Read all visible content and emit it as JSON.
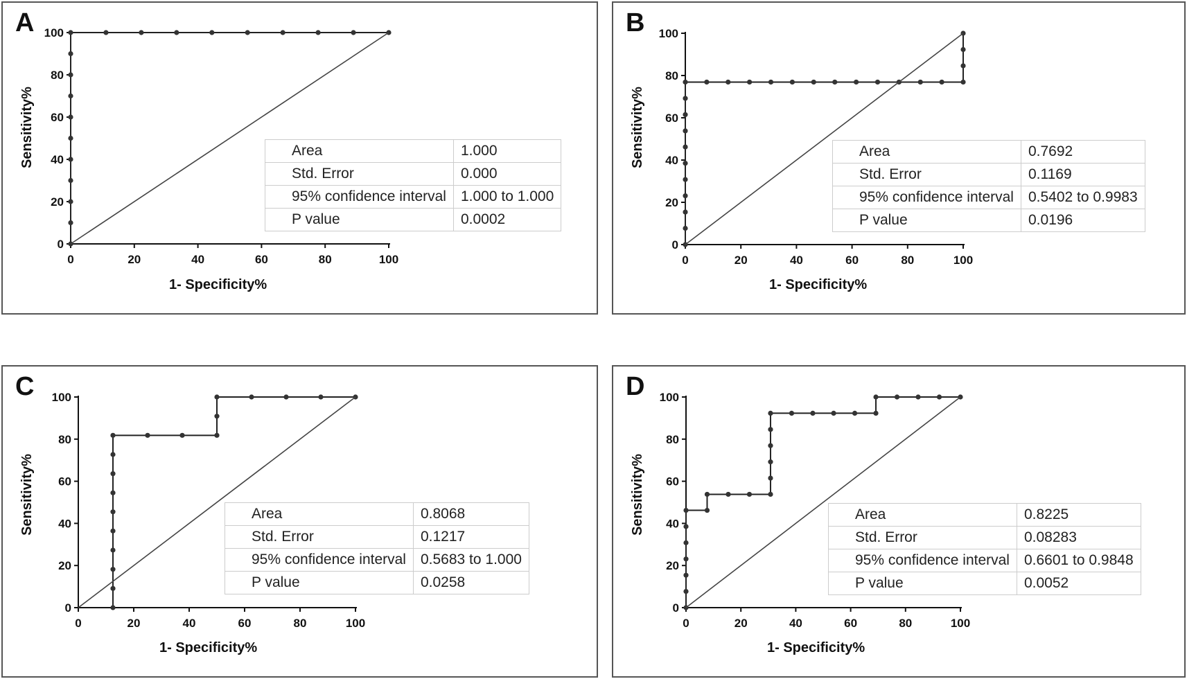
{
  "chart_data": [
    {
      "type": "line",
      "panel_label": "A",
      "xlabel": "1- Specificity%",
      "ylabel": "Sensitivity%",
      "xlim": [
        0,
        100
      ],
      "ylim": [
        0,
        100
      ],
      "xticks": [
        0,
        20,
        40,
        60,
        80,
        100
      ],
      "yticks": [
        0,
        20,
        40,
        60,
        80,
        100
      ],
      "series": [
        {
          "name": "ROC curve",
          "x": [
            0,
            0,
            0,
            0,
            0,
            0,
            0,
            0,
            0,
            0,
            0,
            11.1,
            22.2,
            33.3,
            44.4,
            55.6,
            66.7,
            77.8,
            88.9,
            100
          ],
          "y": [
            0,
            10,
            20,
            30,
            40,
            50,
            60,
            70,
            80,
            90,
            100,
            100,
            100,
            100,
            100,
            100,
            100,
            100,
            100,
            100
          ]
        },
        {
          "name": "Reference line",
          "x": [
            0,
            100
          ],
          "y": [
            0,
            100
          ]
        }
      ],
      "stats": [
        {
          "label": "Area",
          "value": "1.000"
        },
        {
          "label": "Std. Error",
          "value": "0.000"
        },
        {
          "label": "95% confidence interval",
          "value": "1.000 to 1.000"
        },
        {
          "label": "P value",
          "value": "0.0002"
        }
      ]
    },
    {
      "type": "line",
      "panel_label": "B",
      "xlabel": "1- Specificity%",
      "ylabel": "Sensitivity%",
      "xlim": [
        0,
        100
      ],
      "ylim": [
        0,
        100
      ],
      "xticks": [
        0,
        20,
        40,
        60,
        80,
        100
      ],
      "yticks": [
        0,
        20,
        40,
        60,
        80,
        100
      ],
      "series": [
        {
          "name": "ROC curve",
          "x": [
            0,
            0,
            0,
            0,
            0,
            0,
            0,
            0,
            0,
            0,
            0,
            7.7,
            15.4,
            23.1,
            30.8,
            38.5,
            46.2,
            53.8,
            61.5,
            69.2,
            76.9,
            84.6,
            92.3,
            100,
            100,
            100,
            100
          ],
          "y": [
            0,
            7.7,
            15.4,
            23.1,
            30.8,
            38.5,
            46.2,
            53.8,
            61.5,
            69.2,
            76.9,
            76.9,
            76.9,
            76.9,
            76.9,
            76.9,
            76.9,
            76.9,
            76.9,
            76.9,
            76.9,
            76.9,
            76.9,
            76.9,
            84.6,
            92.3,
            100
          ]
        },
        {
          "name": "Reference line",
          "x": [
            0,
            100
          ],
          "y": [
            0,
            100
          ]
        }
      ],
      "stats": [
        {
          "label": "Area",
          "value": "0.7692"
        },
        {
          "label": "Std. Error",
          "value": "0.1169"
        },
        {
          "label": "95% confidence interval",
          "value": "0.5402 to 0.9983"
        },
        {
          "label": "P value",
          "value": "0.0196"
        }
      ]
    },
    {
      "type": "line",
      "panel_label": "C",
      "xlabel": "1- Specificity%",
      "ylabel": "Sensitivity%",
      "xlim": [
        0,
        100
      ],
      "ylim": [
        0,
        100
      ],
      "xticks": [
        0,
        20,
        40,
        60,
        80,
        100
      ],
      "yticks": [
        0,
        20,
        40,
        60,
        80,
        100
      ],
      "series": [
        {
          "name": "ROC curve",
          "x": [
            12.5,
            12.5,
            12.5,
            12.5,
            12.5,
            12.5,
            12.5,
            12.5,
            12.5,
            12.5,
            25,
            37.5,
            50,
            50,
            50,
            62.5,
            75,
            87.5,
            100
          ],
          "y": [
            0,
            9.1,
            18.2,
            27.3,
            36.4,
            45.5,
            54.5,
            63.6,
            72.7,
            81.8,
            81.8,
            81.8,
            81.8,
            90.9,
            100,
            100,
            100,
            100,
            100
          ]
        },
        {
          "name": "Reference line",
          "x": [
            0,
            100
          ],
          "y": [
            0,
            100
          ]
        }
      ],
      "stats": [
        {
          "label": "Area",
          "value": "0.8068"
        },
        {
          "label": "Std. Error",
          "value": "0.1217"
        },
        {
          "label": "95% confidence interval",
          "value": "0.5683 to 1.000"
        },
        {
          "label": "P value",
          "value": "0.0258"
        }
      ]
    },
    {
      "type": "line",
      "panel_label": "D",
      "xlabel": "1- Specificity%",
      "ylabel": "Sensitivity%",
      "xlim": [
        0,
        100
      ],
      "ylim": [
        0,
        100
      ],
      "xticks": [
        0,
        20,
        40,
        60,
        80,
        100
      ],
      "yticks": [
        0,
        20,
        40,
        60,
        80,
        100
      ],
      "series": [
        {
          "name": "ROC curve",
          "x": [
            0,
            0,
            0,
            0,
            0,
            0,
            0,
            7.7,
            7.7,
            15.4,
            23.1,
            30.8,
            30.8,
            30.8,
            30.8,
            30.8,
            30.8,
            38.5,
            46.2,
            53.8,
            61.5,
            69.2,
            69.2,
            76.9,
            84.6,
            92.3,
            100
          ],
          "y": [
            0,
            7.7,
            15.4,
            23.1,
            30.8,
            38.5,
            46.2,
            46.2,
            53.8,
            53.8,
            53.8,
            53.8,
            61.5,
            69.2,
            76.9,
            84.6,
            92.3,
            92.3,
            92.3,
            92.3,
            92.3,
            92.3,
            100,
            100,
            100,
            100,
            100
          ]
        },
        {
          "name": "Reference line",
          "x": [
            0,
            100
          ],
          "y": [
            0,
            100
          ]
        }
      ],
      "stats": [
        {
          "label": "Area",
          "value": "0.8225"
        },
        {
          "label": "Std. Error",
          "value": "0.08283"
        },
        {
          "label": "95% confidence interval",
          "value": "0.6601 to 0.9848"
        },
        {
          "label": "P value",
          "value": "0.0052"
        }
      ]
    }
  ]
}
